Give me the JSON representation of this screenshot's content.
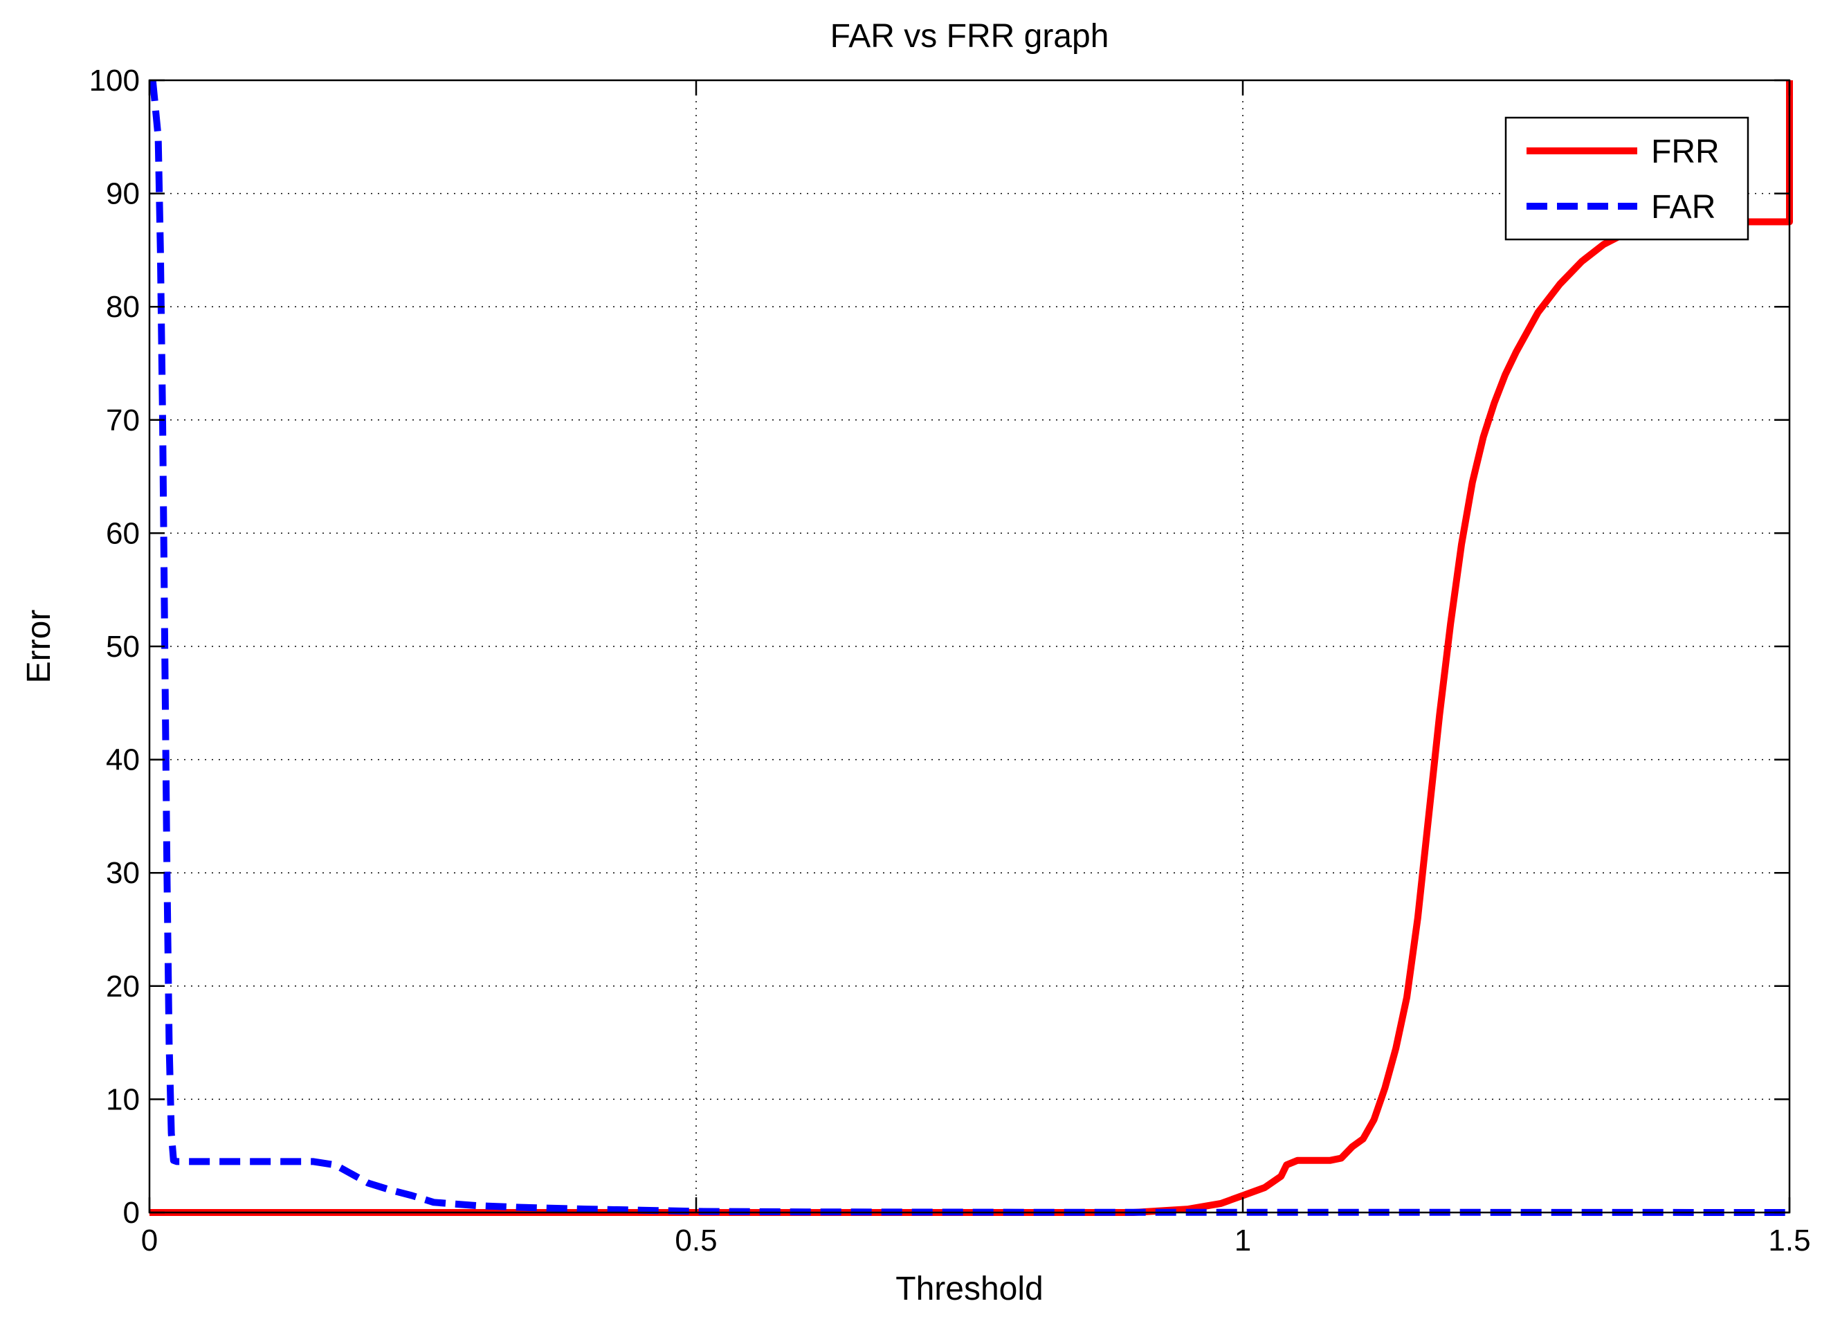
{
  "chart_data": {
    "type": "line",
    "title": "FAR vs FRR graph",
    "xlabel": "Threshold",
    "ylabel": "Error",
    "xlim": [
      0,
      1.5
    ],
    "ylim": [
      0,
      100
    ],
    "xticks": [
      0,
      0.5,
      1,
      1.5
    ],
    "xtick_labels": [
      "0",
      "0.5",
      "1",
      "1.5"
    ],
    "yticks": [
      0,
      10,
      20,
      30,
      40,
      50,
      60,
      70,
      80,
      90,
      100
    ],
    "ytick_labels": [
      "0",
      "10",
      "20",
      "30",
      "40",
      "50",
      "60",
      "70",
      "80",
      "90",
      "100"
    ],
    "grid": true,
    "legend_position": "top-right",
    "series": [
      {
        "name": "FRR",
        "color": "#ff0000",
        "line_style": "solid",
        "x": [
          0,
          0.9,
          0.95,
          0.98,
          1.0,
          1.02,
          1.035,
          1.04,
          1.05,
          1.06,
          1.08,
          1.09,
          1.1,
          1.11,
          1.12,
          1.13,
          1.14,
          1.15,
          1.16,
          1.17,
          1.18,
          1.19,
          1.2,
          1.21,
          1.22,
          1.23,
          1.24,
          1.25,
          1.27,
          1.29,
          1.31,
          1.33,
          1.35,
          1.37,
          1.38,
          1.4,
          1.42,
          1.44,
          1.46,
          1.48,
          1.5,
          1.5
        ],
        "y": [
          0,
          0,
          0.3,
          0.8,
          1.5,
          2.2,
          3.2,
          4.2,
          4.6,
          4.6,
          4.6,
          4.8,
          5.8,
          6.5,
          8.2,
          11,
          14.5,
          19,
          26,
          35,
          44,
          52,
          59,
          64.5,
          68.5,
          71.5,
          74,
          76,
          79.5,
          82,
          84,
          85.5,
          86.5,
          87.2,
          87.5,
          87.5,
          87.5,
          87.5,
          87.5,
          87.5,
          87.5,
          100
        ]
      },
      {
        "name": "FAR",
        "color": "#0000ff",
        "line_style": "dashed",
        "x": [
          0.003,
          0.005,
          0.008,
          0.01,
          0.012,
          0.014,
          0.016,
          0.018,
          0.02,
          0.022,
          0.025,
          0.03,
          0.06,
          0.1,
          0.15,
          0.17,
          0.2,
          0.22,
          0.24,
          0.26,
          0.3,
          0.34,
          0.36,
          0.4,
          0.45,
          0.5,
          0.6,
          0.8,
          1.0,
          1.2,
          1.5
        ],
        "y": [
          100,
          98,
          95,
          85,
          70,
          50,
          30,
          15,
          7,
          4.6,
          4.5,
          4.5,
          4.5,
          4.5,
          4.5,
          4.2,
          2.6,
          2.0,
          1.5,
          0.9,
          0.6,
          0.45,
          0.4,
          0.3,
          0.2,
          0.1,
          0.05,
          0.02,
          0.01,
          0.01,
          0
        ]
      }
    ]
  }
}
